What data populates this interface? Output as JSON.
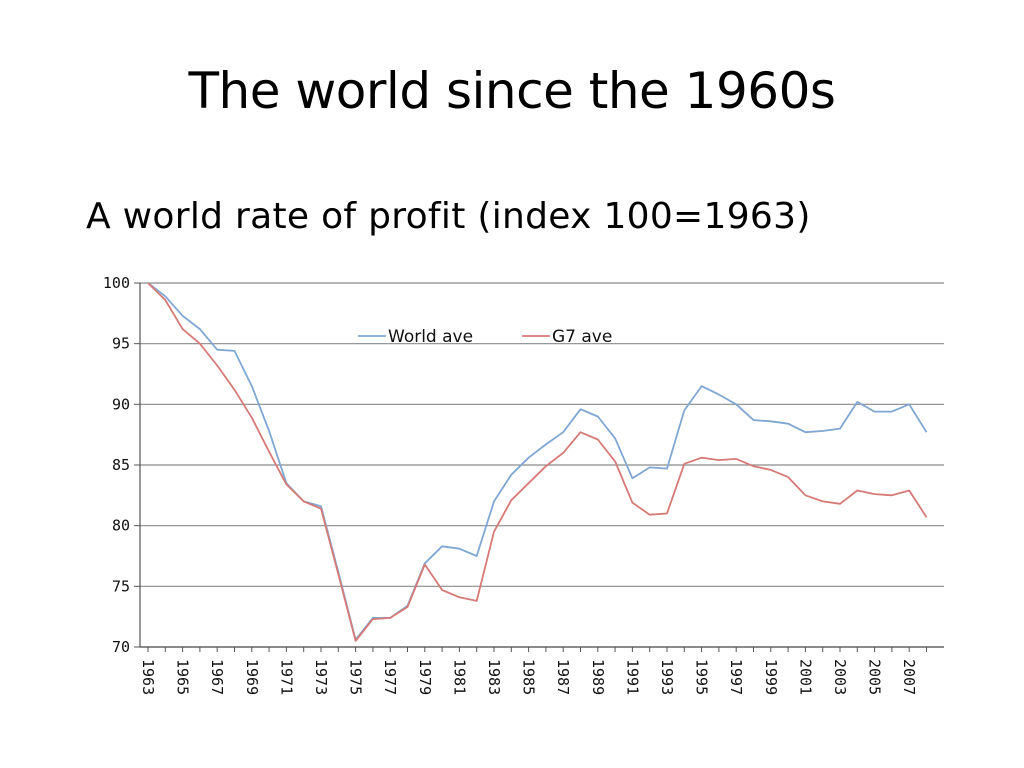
{
  "slide": {
    "title": "The world since the 1960s"
  },
  "chart_data": {
    "type": "line",
    "title": "A world rate of profit (index 100=1963)",
    "xlabel": "",
    "ylabel": "",
    "ylim": [
      70,
      100
    ],
    "yticks": [
      70,
      75,
      80,
      85,
      90,
      95,
      100
    ],
    "grid": true,
    "legend_position": "top-center",
    "x": [
      1963,
      1964,
      1965,
      1966,
      1967,
      1968,
      1969,
      1970,
      1971,
      1972,
      1973,
      1974,
      1975,
      1976,
      1977,
      1978,
      1979,
      1980,
      1981,
      1982,
      1983,
      1984,
      1985,
      1986,
      1987,
      1988,
      1989,
      1990,
      1991,
      1992,
      1993,
      1994,
      1995,
      1996,
      1997,
      1998,
      1999,
      2000,
      2001,
      2002,
      2003,
      2004,
      2005,
      2006,
      2007,
      2008
    ],
    "xtick_labels": [
      "1963",
      "1965",
      "1967",
      "1969",
      "1971",
      "1973",
      "1975",
      "1977",
      "1979",
      "1981",
      "1983",
      "1985",
      "1987",
      "1989",
      "1991",
      "1993",
      "1995",
      "1997",
      "1999",
      "2001",
      "2003",
      "2005",
      "2007"
    ],
    "series": [
      {
        "name": "World ave",
        "color": "#7fa7d3",
        "values": [
          100,
          98.9,
          97.3,
          96.2,
          94.5,
          94.4,
          91.5,
          87.8,
          83.5,
          82.0,
          81.6,
          76.2,
          70.6,
          72.4,
          72.4,
          73.4,
          76.9,
          78.3,
          78.1,
          77.5,
          82.0,
          84.2,
          85.6,
          86.7,
          87.7,
          89.6,
          89.0,
          87.2,
          83.9,
          84.8,
          84.7,
          89.5,
          91.5,
          90.8,
          90.0,
          88.7,
          88.6,
          88.4,
          87.7,
          87.8,
          88.0,
          90.2,
          89.4,
          89.4,
          90.0,
          87.7
        ]
      },
      {
        "name": "G7 ave",
        "color": "#d67a76",
        "values": [
          100,
          98.6,
          96.2,
          95.0,
          93.2,
          91.2,
          88.9,
          86.1,
          83.4,
          82.0,
          81.4,
          76.0,
          70.5,
          72.3,
          72.4,
          73.3,
          76.8,
          74.7,
          74.1,
          73.8,
          79.5,
          82.1,
          83.5,
          84.9,
          86.0,
          87.7,
          87.1,
          85.3,
          81.9,
          80.9,
          81.0,
          85.1,
          85.6,
          85.4,
          85.5,
          84.9,
          84.6,
          84.0,
          82.5,
          82.0,
          81.8,
          82.9,
          82.6,
          82.5,
          82.9,
          80.7
        ]
      }
    ]
  }
}
